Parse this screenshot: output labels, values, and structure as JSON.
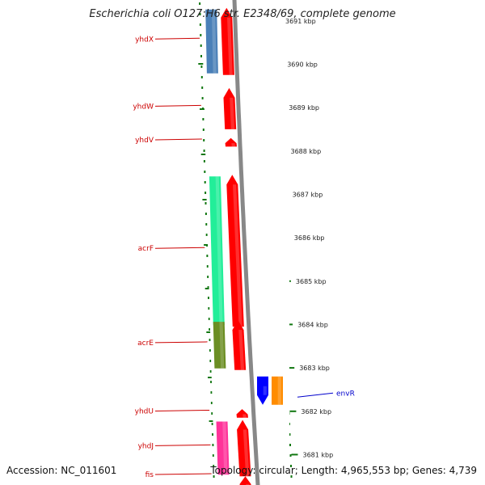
{
  "header": {
    "title": "Escherichia coli O127:H6 str. E2348/69, complete genome"
  },
  "footer": {
    "accession": "Accession: NC_011601",
    "summary": "Topology: circular; Length: 4,965,553 bp; Genes: 4,739"
  },
  "colors": {
    "forward_strand": "#ff0000",
    "label_red": "#cc0000",
    "label_blue": "#0000cc",
    "backbone": "#888888",
    "tick_green": "#117711"
  },
  "scale": {
    "unit": "kbp",
    "ticks": [
      {
        "value": 3691,
        "label": "3691 kbp"
      },
      {
        "value": 3690,
        "label": "3690 kbp"
      },
      {
        "value": 3689,
        "label": "3689 kbp"
      },
      {
        "value": 3688,
        "label": "3688 kbp"
      },
      {
        "value": 3687,
        "label": "3687 kbp"
      },
      {
        "value": 3686,
        "label": "3686 kbp"
      },
      {
        "value": 3685,
        "label": "3685 kbp"
      },
      {
        "value": 3684,
        "label": "3684 kbp"
      },
      {
        "value": 3683,
        "label": "3683 kbp"
      },
      {
        "value": 3682,
        "label": "3682 kbp"
      },
      {
        "value": 3681,
        "label": "3681 kbp"
      }
    ]
  },
  "genes": [
    {
      "name": "yhdX",
      "strand": "forward",
      "start_kbp": 3689.75,
      "end_kbp": 3691.3,
      "color": "#ff0000",
      "cog_color": "#4a80b8",
      "label_side": "left"
    },
    {
      "name": "yhdW",
      "strand": "forward",
      "start_kbp": 3688.5,
      "end_kbp": 3689.45,
      "color": "#ff0000",
      "cog_color": null,
      "label_side": "left"
    },
    {
      "name": "yhdV",
      "strand": "forward",
      "start_kbp": 3688.1,
      "end_kbp": 3688.3,
      "color": "#ff0000",
      "cog_color": null,
      "label_side": "left"
    },
    {
      "name": "acrF",
      "strand": "forward",
      "start_kbp": 3683.95,
      "end_kbp": 3687.45,
      "color": "#ff0000",
      "cog_color": "#22ee99",
      "label_side": "left"
    },
    {
      "name": "acrE",
      "strand": "forward",
      "start_kbp": 3682.95,
      "end_kbp": 3684.1,
      "color": "#ff0000",
      "cog_color": "#6b8e23",
      "label_side": "left"
    },
    {
      "name": "envR",
      "strand": "reverse",
      "start_kbp": 3682.15,
      "end_kbp": 3682.8,
      "color": "#0000ff",
      "cog_color": "#ff8c00",
      "label_side": "right"
    },
    {
      "name": "yhdU",
      "strand": "forward",
      "start_kbp": 3681.85,
      "end_kbp": 3682.05,
      "color": "#ff0000",
      "cog_color": null,
      "label_side": "left"
    },
    {
      "name": "yhdJ",
      "strand": "forward",
      "start_kbp": 3680.5,
      "end_kbp": 3681.8,
      "color": "#ff0000",
      "cog_color": "#ff3399",
      "label_side": "left"
    },
    {
      "name": "fis",
      "strand": "forward",
      "start_kbp": 3680.2,
      "end_kbp": 3680.5,
      "color": "#ff0000",
      "cog_color": null,
      "label_side": "left"
    }
  ]
}
